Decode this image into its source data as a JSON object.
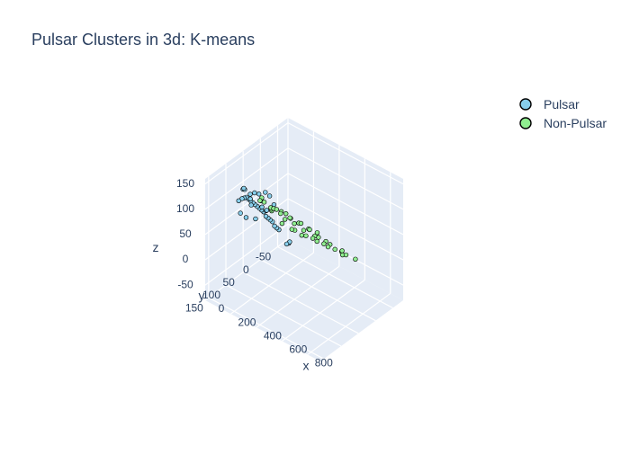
{
  "chart_data": {
    "type": "scatter3d",
    "title": "Pulsar Clusters in 3d: K-means",
    "axes": {
      "x": {
        "label": "x",
        "range": [
          0,
          900
        ],
        "ticks": [
          0,
          200,
          400,
          600,
          800
        ]
      },
      "y": {
        "label": "y",
        "range": [
          -80,
          160
        ],
        "ticks": [
          -50,
          0,
          50,
          100,
          150
        ]
      },
      "z": {
        "label": "z",
        "range": [
          -80,
          160
        ],
        "ticks": [
          -50,
          0,
          50,
          100,
          150
        ]
      }
    },
    "legend_position": "top-right",
    "series": [
      {
        "name": "Pulsar",
        "color": "#87ceeb",
        "marker": "circle",
        "points": [
          [
            10,
            -50,
            -45
          ],
          [
            20,
            -40,
            -35
          ],
          [
            30,
            -30,
            -25
          ],
          [
            40,
            -20,
            -10
          ],
          [
            50,
            -10,
            0
          ],
          [
            60,
            0,
            10
          ],
          [
            70,
            10,
            20
          ],
          [
            80,
            20,
            35
          ],
          [
            90,
            30,
            45
          ],
          [
            100,
            40,
            55
          ],
          [
            110,
            50,
            65
          ],
          [
            120,
            60,
            75
          ],
          [
            130,
            70,
            85
          ],
          [
            140,
            80,
            95
          ],
          [
            150,
            90,
            105
          ],
          [
            160,
            100,
            115
          ],
          [
            170,
            110,
            120
          ],
          [
            180,
            120,
            125
          ],
          [
            60,
            -60,
            -70
          ],
          [
            40,
            -70,
            -75
          ],
          [
            30,
            -65,
            -78
          ],
          [
            100,
            20,
            40
          ],
          [
            120,
            40,
            60
          ],
          [
            140,
            50,
            80
          ],
          [
            90,
            60,
            70
          ],
          [
            110,
            70,
            90
          ],
          [
            130,
            30,
            50
          ],
          [
            150,
            60,
            100
          ],
          [
            80,
            80,
            110
          ],
          [
            70,
            40,
            30
          ],
          [
            160,
            20,
            60
          ],
          [
            180,
            40,
            90
          ],
          [
            200,
            60,
            110
          ],
          [
            120,
            90,
            120
          ],
          [
            140,
            100,
            130
          ],
          [
            100,
            100,
            100
          ],
          [
            60,
            80,
            60
          ],
          [
            50,
            60,
            40
          ],
          [
            170,
            80,
            115
          ],
          [
            190,
            100,
            125
          ]
        ]
      },
      {
        "name": "Non-Pulsar",
        "color": "#90ee90",
        "marker": "circle",
        "points": [
          [
            250,
            60,
            80
          ],
          [
            300,
            80,
            100
          ],
          [
            350,
            100,
            120
          ],
          [
            400,
            110,
            130
          ],
          [
            450,
            120,
            140
          ],
          [
            500,
            125,
            145
          ],
          [
            550,
            130,
            150
          ],
          [
            600,
            135,
            150
          ],
          [
            650,
            130,
            145
          ],
          [
            700,
            120,
            135
          ],
          [
            750,
            110,
            120
          ],
          [
            800,
            95,
            105
          ],
          [
            850,
            80,
            90
          ],
          [
            300,
            40,
            60
          ],
          [
            400,
            50,
            70
          ],
          [
            500,
            60,
            75
          ],
          [
            600,
            65,
            80
          ],
          [
            700,
            70,
            85
          ],
          [
            800,
            60,
            75
          ],
          [
            350,
            30,
            40
          ],
          [
            450,
            35,
            45
          ],
          [
            550,
            40,
            50
          ],
          [
            650,
            45,
            55
          ],
          [
            750,
            40,
            50
          ],
          [
            400,
            90,
            110
          ],
          [
            500,
            100,
            120
          ],
          [
            600,
            105,
            125
          ],
          [
            700,
            95,
            115
          ],
          [
            280,
            100,
            130
          ],
          [
            320,
            120,
            140
          ],
          [
            380,
            130,
            150
          ],
          [
            250,
            30,
            40
          ],
          [
            300,
            20,
            30
          ],
          [
            350,
            10,
            20
          ],
          [
            450,
            15,
            30
          ],
          [
            550,
            20,
            35
          ],
          [
            650,
            25,
            40
          ],
          [
            750,
            30,
            45
          ],
          [
            850,
            40,
            55
          ],
          [
            600,
            80,
            100
          ]
        ]
      }
    ]
  }
}
